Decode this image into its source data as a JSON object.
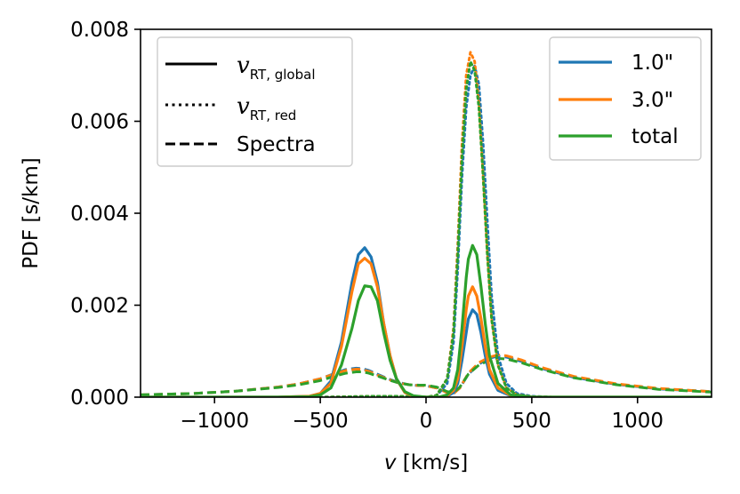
{
  "chart_data": {
    "type": "line",
    "xlabel_var": "v",
    "xlabel_unit": " [km/s]",
    "ylabel": "PDF [s/km]",
    "xlim": [
      -1350,
      1350
    ],
    "ylim": [
      0,
      0.008
    ],
    "xticks": [
      -1000,
      -500,
      0,
      500,
      1000
    ],
    "xtick_labels": [
      "−1000",
      "−500",
      "0",
      "500",
      "1000"
    ],
    "yticks": [
      0,
      0.002,
      0.004,
      0.006,
      0.008
    ],
    "ytick_labels": [
      "0.000",
      "0.002",
      "0.004",
      "0.006",
      "0.008"
    ],
    "colors": {
      "1.0\"": "#1f77b4",
      "3.0\"": "#ff7f0e",
      "total": "#2ca02c"
    },
    "legend_color": {
      "position": "upper right",
      "entries": [
        {
          "label": "1.0\"",
          "color": "#1f77b4"
        },
        {
          "label": "3.0\"",
          "color": "#ff7f0e"
        },
        {
          "label": "total",
          "color": "#2ca02c"
        }
      ]
    },
    "legend_style": {
      "position": "upper left",
      "entries": [
        {
          "style": "solid",
          "var": "v",
          "sub": "RT, global"
        },
        {
          "style": "dotted",
          "var": "v",
          "sub": "RT, red"
        },
        {
          "style": "dashed",
          "label": "Spectra"
        }
      ]
    },
    "series": [
      {
        "name": "1.0\"",
        "style": "solid",
        "color": "#1f77b4",
        "x": [
          -1350,
          -700,
          -550,
          -500,
          -450,
          -400,
          -350,
          -320,
          -290,
          -260,
          -230,
          -200,
          -170,
          -140,
          -100,
          -60,
          0,
          60,
          100,
          130,
          150,
          170,
          190,
          200,
          220,
          240,
          260,
          280,
          300,
          340,
          400,
          500,
          700,
          1350
        ],
        "y": [
          0,
          0,
          2e-05,
          8e-05,
          0.00035,
          0.0012,
          0.0025,
          0.0031,
          0.00325,
          0.00305,
          0.0025,
          0.0016,
          0.0009,
          0.0004,
          0.0001,
          2e-05,
          0,
          0,
          2e-05,
          0.0001,
          0.0003,
          0.0008,
          0.0014,
          0.0017,
          0.0019,
          0.0018,
          0.0014,
          0.0009,
          0.0005,
          0.00015,
          3e-05,
          0,
          0,
          0
        ]
      },
      {
        "name": "3.0\"",
        "style": "solid",
        "color": "#ff7f0e",
        "x": [
          -1350,
          -700,
          -550,
          -500,
          -450,
          -400,
          -350,
          -320,
          -290,
          -260,
          -230,
          -200,
          -170,
          -140,
          -100,
          -60,
          0,
          60,
          100,
          130,
          150,
          170,
          190,
          200,
          220,
          240,
          260,
          280,
          300,
          340,
          400,
          500,
          700,
          1350
        ],
        "y": [
          0,
          0,
          2e-05,
          8e-05,
          0.0003,
          0.0011,
          0.0023,
          0.0029,
          0.00302,
          0.0029,
          0.0024,
          0.0016,
          0.0009,
          0.0004,
          0.0001,
          2e-05,
          0,
          0,
          3e-05,
          0.00015,
          0.0004,
          0.0011,
          0.0019,
          0.0022,
          0.0024,
          0.0022,
          0.0017,
          0.0011,
          0.0006,
          0.0002,
          4e-05,
          0,
          0,
          0
        ]
      },
      {
        "name": "total",
        "style": "solid",
        "color": "#2ca02c",
        "x": [
          -1350,
          -700,
          -550,
          -500,
          -450,
          -400,
          -350,
          -320,
          -290,
          -260,
          -230,
          -200,
          -170,
          -140,
          -100,
          -60,
          0,
          60,
          100,
          130,
          150,
          170,
          190,
          200,
          220,
          240,
          260,
          280,
          300,
          340,
          400,
          500,
          700,
          1350
        ],
        "y": [
          0,
          0,
          1e-05,
          5e-05,
          0.0002,
          0.0007,
          0.0015,
          0.0021,
          0.00242,
          0.0024,
          0.0021,
          0.0014,
          0.0008,
          0.0004,
          0.00012,
          3e-05,
          0,
          0,
          5e-05,
          0.0002,
          0.0006,
          0.0015,
          0.0026,
          0.003,
          0.0033,
          0.0031,
          0.0024,
          0.0016,
          0.0009,
          0.0003,
          5e-05,
          0,
          0,
          0
        ]
      },
      {
        "name": "1.0\"",
        "style": "dotted",
        "color": "#1f77b4",
        "x": [
          -1350,
          -500,
          -350,
          -250,
          -150,
          -50,
          0,
          50,
          100,
          130,
          150,
          170,
          190,
          210,
          230,
          250,
          270,
          290,
          310,
          340,
          380,
          430,
          500,
          600,
          800,
          1350
        ],
        "y": [
          0,
          0,
          1e-05,
          2e-05,
          2e-05,
          1e-05,
          0,
          3e-05,
          0.0003,
          0.0012,
          0.0028,
          0.0048,
          0.0063,
          0.007,
          0.0072,
          0.0068,
          0.0055,
          0.0038,
          0.0022,
          0.0009,
          0.0003,
          8e-05,
          2e-05,
          0,
          0,
          0
        ]
      },
      {
        "name": "3.0\"",
        "style": "dotted",
        "color": "#ff7f0e",
        "x": [
          -1350,
          -500,
          -350,
          -250,
          -150,
          -50,
          0,
          50,
          100,
          130,
          150,
          170,
          190,
          210,
          230,
          250,
          270,
          290,
          310,
          340,
          380,
          430,
          500,
          600,
          800,
          1350
        ],
        "y": [
          0,
          0,
          1e-05,
          2e-05,
          2e-05,
          1e-05,
          0,
          4e-05,
          0.0004,
          0.0015,
          0.0033,
          0.0055,
          0.007,
          0.0075,
          0.0073,
          0.0064,
          0.0048,
          0.0031,
          0.0017,
          0.0007,
          0.0002,
          5e-05,
          1e-05,
          0,
          0,
          0
        ]
      },
      {
        "name": "total",
        "style": "dotted",
        "color": "#2ca02c",
        "x": [
          -1350,
          -500,
          -350,
          -250,
          -150,
          -50,
          0,
          50,
          100,
          130,
          150,
          170,
          190,
          210,
          230,
          250,
          270,
          290,
          310,
          340,
          380,
          430,
          500,
          600,
          800,
          1350
        ],
        "y": [
          0,
          0,
          1e-05,
          2e-05,
          2e-05,
          1e-05,
          0,
          4e-05,
          0.0004,
          0.0014,
          0.0031,
          0.0052,
          0.0067,
          0.0073,
          0.0071,
          0.0063,
          0.0048,
          0.0031,
          0.0017,
          0.0007,
          0.0002,
          5e-05,
          1e-05,
          0,
          0,
          0
        ]
      },
      {
        "name": "1.0\"",
        "style": "dashed",
        "color": "#1f77b4",
        "x": [
          -1350,
          -1100,
          -900,
          -700,
          -600,
          -500,
          -430,
          -380,
          -330,
          -300,
          -270,
          -230,
          -180,
          -130,
          -80,
          -30,
          0,
          50,
          100,
          130,
          160,
          200,
          250,
          300,
          340,
          380,
          450,
          550,
          700,
          900,
          1100,
          1350
        ],
        "y": [
          5e-05,
          8e-05,
          0.00013,
          0.00022,
          0.00029,
          0.0004,
          0.00052,
          0.0006,
          0.00063,
          0.00062,
          0.00058,
          0.0005,
          0.0004,
          0.00032,
          0.00027,
          0.00025,
          0.00025,
          0.0002,
          0.0001,
          8e-05,
          0.0002,
          0.0005,
          0.00072,
          0.00085,
          0.00089,
          0.00087,
          0.00078,
          0.00062,
          0.00043,
          0.00028,
          0.00018,
          0.00012
        ]
      },
      {
        "name": "3.0\"",
        "style": "dashed",
        "color": "#ff7f0e",
        "x": [
          -1350,
          -1100,
          -900,
          -700,
          -600,
          -500,
          -430,
          -380,
          -330,
          -300,
          -270,
          -230,
          -180,
          -130,
          -80,
          -30,
          0,
          50,
          100,
          130,
          160,
          200,
          250,
          300,
          340,
          380,
          450,
          550,
          700,
          900,
          1100,
          1350
        ],
        "y": [
          5e-05,
          8e-05,
          0.00013,
          0.00022,
          0.00029,
          0.0004,
          0.00051,
          0.00058,
          0.00061,
          0.0006,
          0.00056,
          0.00048,
          0.00039,
          0.00031,
          0.00027,
          0.00025,
          0.00025,
          0.0002,
          0.0001,
          8e-05,
          0.0002,
          0.00052,
          0.00075,
          0.00087,
          0.00092,
          0.0009,
          0.00081,
          0.00064,
          0.00045,
          0.00029,
          0.00019,
          0.00012
        ]
      },
      {
        "name": "total",
        "style": "dashed",
        "color": "#2ca02c",
        "x": [
          -1350,
          -1100,
          -900,
          -700,
          -600,
          -500,
          -430,
          -380,
          -330,
          -300,
          -270,
          -230,
          -180,
          -130,
          -80,
          -30,
          0,
          50,
          100,
          130,
          160,
          200,
          250,
          300,
          340,
          380,
          450,
          550,
          700,
          900,
          1100,
          1350
        ],
        "y": [
          5e-05,
          8e-05,
          0.00013,
          0.00021,
          0.00027,
          0.00036,
          0.00046,
          0.00052,
          0.00055,
          0.00055,
          0.00052,
          0.00046,
          0.00038,
          0.00031,
          0.00027,
          0.00026,
          0.00026,
          0.00022,
          0.00012,
          0.0001,
          0.00022,
          0.0005,
          0.0007,
          0.0008,
          0.00084,
          0.00083,
          0.00075,
          0.0006,
          0.00042,
          0.00027,
          0.00017,
          0.00011
        ]
      }
    ]
  }
}
